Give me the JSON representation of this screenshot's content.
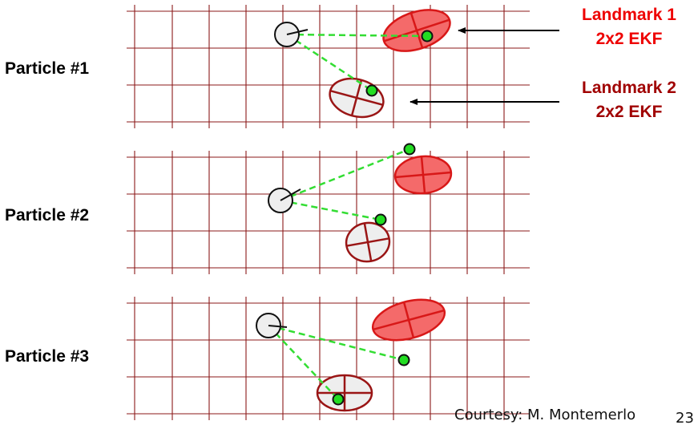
{
  "colors": {
    "grid": "#8b1a1a",
    "landmark1_fill": "#f46a6a",
    "landmark1_stroke": "#d81818",
    "landmark1_text": "#ee0000",
    "landmark2_fill": "#eeeeee",
    "landmark2_stroke": "#9a1515",
    "landmark2_text": "#a00000",
    "measurement": "#22dd22",
    "measurement_line": "#33dd33"
  },
  "panels": [
    {
      "label": "Particle #1"
    },
    {
      "label": "Particle #2"
    },
    {
      "label": "Particle #3"
    }
  ],
  "landmark_labels": [
    {
      "line1": "Landmark 1",
      "line2": "2x2 EKF"
    },
    {
      "line1": "Landmark 2",
      "line2": "2x2 EKF"
    }
  ],
  "footer": {
    "courtesy": "Courtesy: M. Montemerlo",
    "page_number": "23"
  }
}
